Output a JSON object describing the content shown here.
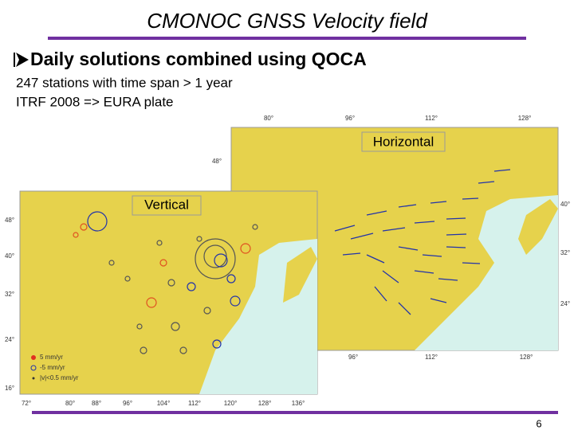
{
  "title": "CMONOC GNSS Velocity field",
  "bullet": "Daily solutions combined using QOCA",
  "lines": [
    "247 stations with time span > 1 year",
    "ITRF 2008 => EURA plate"
  ],
  "maps": {
    "horizontal": {
      "label": "Horizontal",
      "top_ticks": [
        "80°",
        "96°",
        "112°",
        "128°"
      ],
      "left_ticks": [
        "48°"
      ],
      "right_ticks": [
        "40°",
        "32°",
        "24°"
      ],
      "bottom_ticks": [
        "96°",
        "112°",
        "128°"
      ]
    },
    "vertical": {
      "label": "Vertical",
      "left_ticks": [
        "48°",
        "40°",
        "32°",
        "24°",
        "16°"
      ],
      "bottom_ticks": [
        "72°",
        "80°",
        "88°",
        "96°",
        "104°",
        "112°",
        "120°",
        "128°",
        "136°"
      ],
      "legend": [
        "5 mm/yr",
        "-5 mm/yr",
        "|v|<0.5 mm/yr"
      ]
    }
  },
  "page_number": "6"
}
